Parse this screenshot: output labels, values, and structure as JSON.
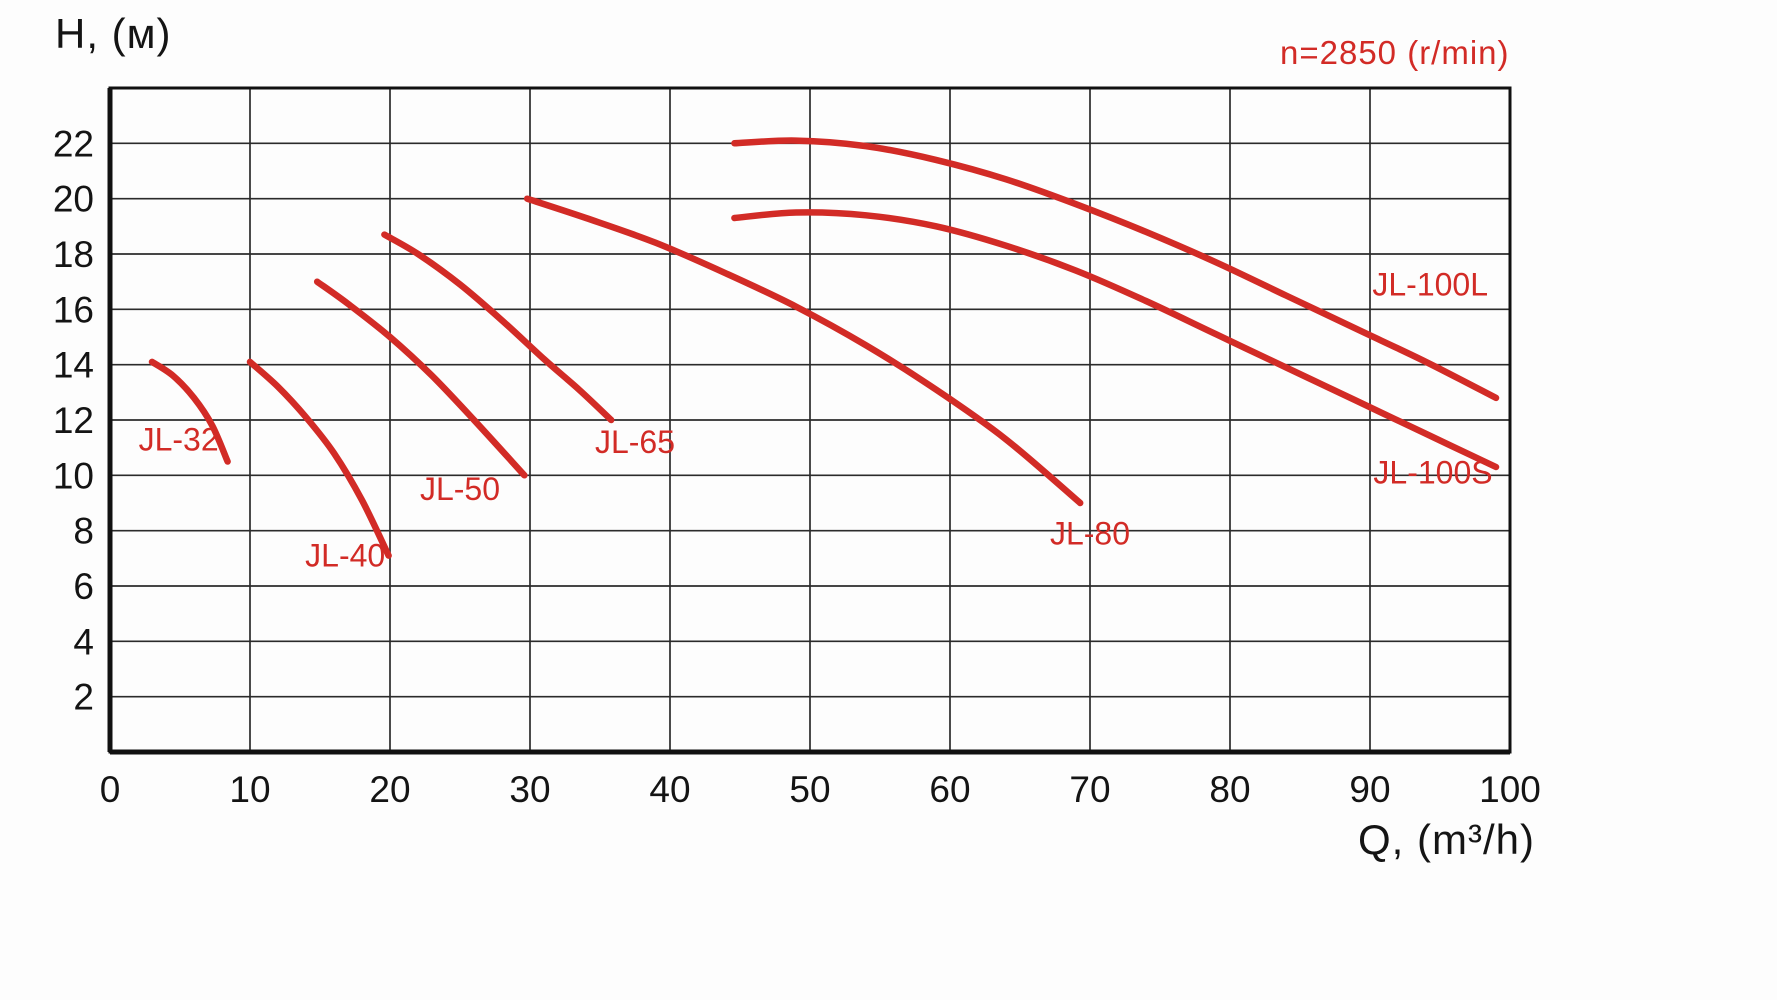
{
  "chart_data": {
    "type": "line",
    "title": "n=2850 (r/min)",
    "xlabel": "Q, (m³/h)",
    "ylabel": "H, (м)",
    "xlim": [
      0,
      100
    ],
    "ylim": [
      0,
      24
    ],
    "x_ticks": [
      0,
      10,
      20,
      30,
      40,
      50,
      60,
      70,
      80,
      90,
      100
    ],
    "y_ticks": [
      2,
      4,
      6,
      8,
      10,
      12,
      14,
      16,
      18,
      20,
      22
    ],
    "grid": true,
    "legend_position": "inline-labels",
    "colors": {
      "curve": "#d22b26",
      "grid": "#2b2b2b",
      "axis": "#111111",
      "label": "#d22b26",
      "text": "#141414",
      "background": "#fdfdfd"
    },
    "series": [
      {
        "name": "JL-32",
        "points": [
          [
            3,
            14.1
          ],
          [
            4.5,
            13.6
          ],
          [
            6,
            12.8
          ],
          [
            7.3,
            11.8
          ],
          [
            8.4,
            10.5
          ]
        ],
        "label_pos": [
          4.9,
          11.3
        ]
      },
      {
        "name": "JL-40",
        "points": [
          [
            10,
            14.1
          ],
          [
            12,
            13.2
          ],
          [
            14,
            12.1
          ],
          [
            16,
            10.8
          ],
          [
            18,
            9.1
          ],
          [
            19.9,
            7.1
          ]
        ],
        "label_pos": [
          16.8,
          7.1
        ]
      },
      {
        "name": "JL-50",
        "points": [
          [
            14.8,
            17
          ],
          [
            17,
            16.2
          ],
          [
            20,
            15
          ],
          [
            23,
            13.6
          ],
          [
            26,
            12
          ],
          [
            29.6,
            10
          ]
        ],
        "label_pos": [
          25,
          9.5
        ]
      },
      {
        "name": "JL-65",
        "points": [
          [
            19.6,
            18.7
          ],
          [
            22,
            18
          ],
          [
            25,
            16.9
          ],
          [
            28,
            15.6
          ],
          [
            31,
            14.2
          ],
          [
            33.5,
            13.1
          ],
          [
            35.8,
            12
          ]
        ],
        "label_pos": [
          37.5,
          11.2
        ]
      },
      {
        "name": "JL-80",
        "points": [
          [
            29.8,
            20
          ],
          [
            34,
            19.3
          ],
          [
            39,
            18.4
          ],
          [
            44,
            17.3
          ],
          [
            49,
            16.1
          ],
          [
            54,
            14.7
          ],
          [
            59,
            13.1
          ],
          [
            64,
            11.3
          ],
          [
            69.3,
            9
          ]
        ],
        "label_pos": [
          70,
          7.9
        ]
      },
      {
        "name": "JL-100S",
        "points": [
          [
            44.6,
            19.3
          ],
          [
            49,
            19.5
          ],
          [
            54,
            19.4
          ],
          [
            59,
            19
          ],
          [
            64,
            18.3
          ],
          [
            69,
            17.4
          ],
          [
            74,
            16.3
          ],
          [
            79,
            15.1
          ],
          [
            84,
            13.9
          ],
          [
            89,
            12.7
          ],
          [
            94,
            11.5
          ],
          [
            99,
            10.3
          ]
        ],
        "label_pos": [
          94.5,
          10.1
        ]
      },
      {
        "name": "JL-100L",
        "points": [
          [
            44.6,
            22
          ],
          [
            49,
            22.1
          ],
          [
            54,
            21.9
          ],
          [
            59,
            21.4
          ],
          [
            64,
            20.7
          ],
          [
            69,
            19.8
          ],
          [
            74,
            18.8
          ],
          [
            79,
            17.7
          ],
          [
            84,
            16.5
          ],
          [
            89,
            15.3
          ],
          [
            94,
            14.1
          ],
          [
            99,
            12.8
          ]
        ],
        "label_pos": [
          94.3,
          16.9
        ]
      }
    ]
  }
}
